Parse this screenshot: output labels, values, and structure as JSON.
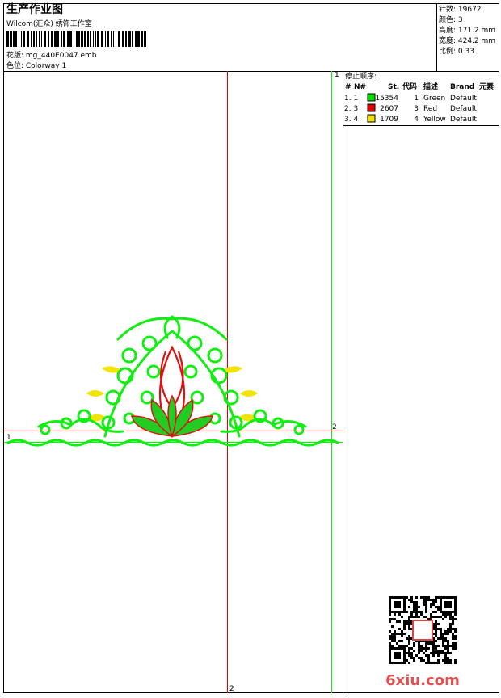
{
  "header": {
    "title": "生产作业图",
    "subtitle": "Wilcom(汇众) 绣饰工作室",
    "design": "花版: mg_440E0047.emb",
    "colorway": "色位: Colorway 1"
  },
  "stats": [
    "针数: 19672",
    "颜色: 3",
    "高度: 171.2 mm",
    "宽度: 424.2 mm",
    "比例: 0.33"
  ],
  "stop_sequence": {
    "title": "停止顺序:",
    "columns": [
      "#",
      "N#",
      "St.",
      "代码",
      "描述",
      "Brand",
      "元素"
    ],
    "rows": [
      {
        "index": "1. 1",
        "color": "#00e000",
        "stitches": 15354,
        "code": 1,
        "description": "Green",
        "brand": "Default"
      },
      {
        "index": "2. 3",
        "color": "#e00000",
        "stitches": 2607,
        "code": 3,
        "description": "Red",
        "brand": "Default"
      },
      {
        "index": "3. 4",
        "color": "#f0e000",
        "stitches": 1709,
        "code": 4,
        "description": "Yellow",
        "brand": "Default"
      }
    ]
  },
  "guides": {
    "green_vertical": "1",
    "green_horizontal": "1",
    "red_horizontal": "2",
    "red_vertical": "2"
  },
  "watermark": "6xiu.com"
}
